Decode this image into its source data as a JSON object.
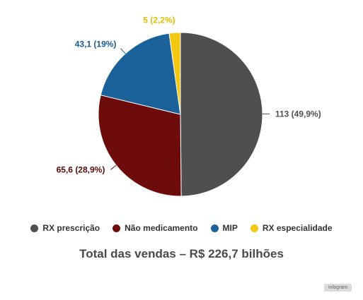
{
  "chart_data": {
    "type": "pie",
    "title": "Total das vendas – R$ 226,7 bilhões",
    "slices": [
      {
        "name": "RX prescrição",
        "value": 113,
        "label": "113 (49,9%)",
        "color": "#4f4f4f",
        "label_color": "#4f4f4f"
      },
      {
        "name": "Não medicamento",
        "value": 65.6,
        "label": "65,6 (28,9%)",
        "color": "#6e0c0c",
        "label_color": "#5a0a0a"
      },
      {
        "name": "MIP",
        "value": 43.1,
        "label": "43,1 (19%)",
        "color": "#1a6299",
        "label_color": "#1a5b8e"
      },
      {
        "name": "RX especialidade",
        "value": 5,
        "label": "5 (2,2%)",
        "color": "#f2c811",
        "label_color": "#e7bd00"
      }
    ],
    "legend_position": "bottom"
  },
  "footer": {
    "badge": "infogram"
  }
}
